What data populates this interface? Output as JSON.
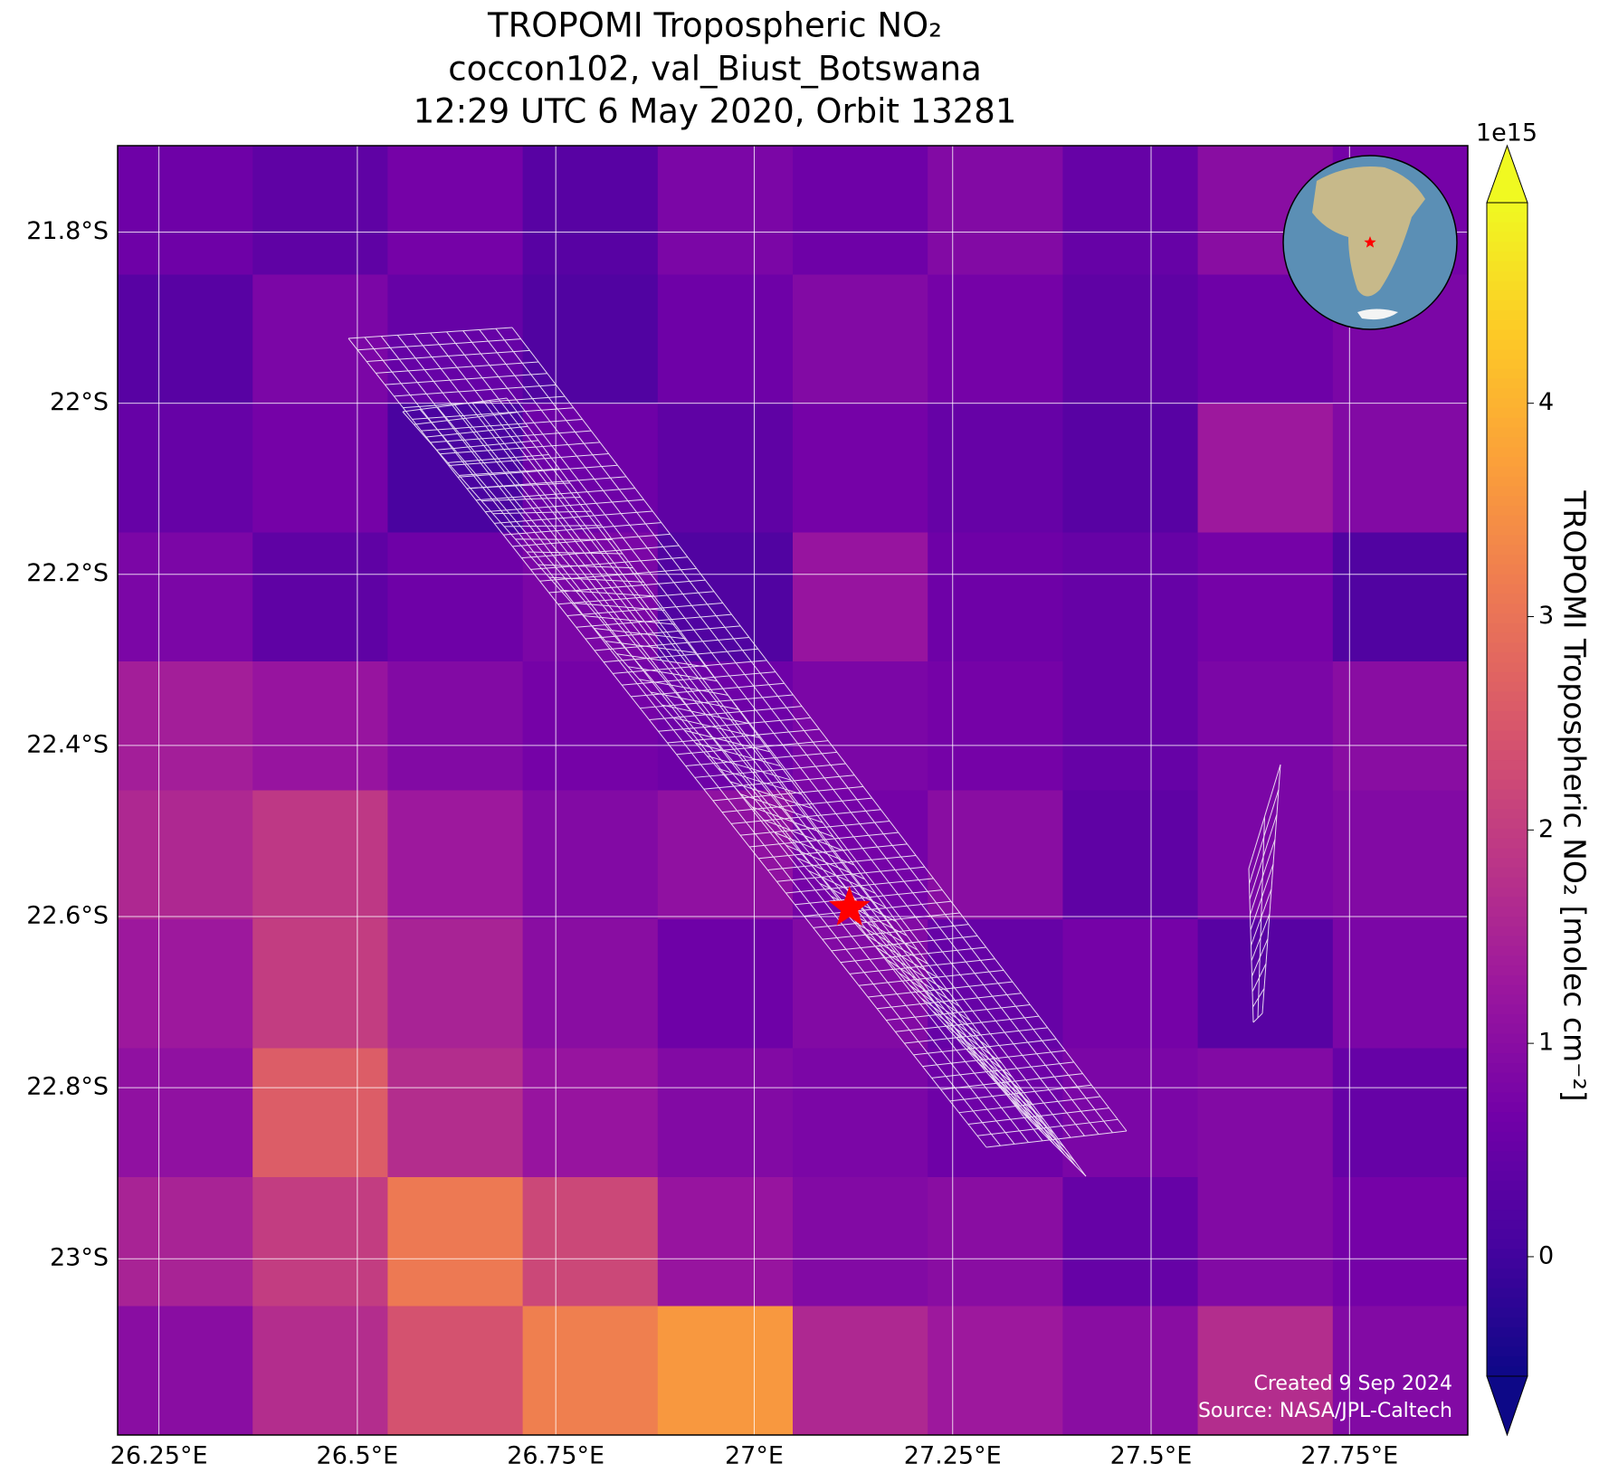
{
  "chart_data": {
    "type": "heatmap",
    "title_lines": [
      "TROPOMI Tropospheric NO₂",
      "coccon102, val_Biust_Botswana",
      "12:29 UTC 6 May 2020, Orbit 13281"
    ],
    "xlim": [
      26.198,
      27.899
    ],
    "ylim": [
      -23.206,
      -21.699
    ],
    "xticks": [
      {
        "value": 26.25,
        "label": "26.25°E"
      },
      {
        "value": 26.5,
        "label": "26.5°E"
      },
      {
        "value": 26.75,
        "label": "26.75°E"
      },
      {
        "value": 27,
        "label": "27°E"
      },
      {
        "value": 27.25,
        "label": "27.25°E"
      },
      {
        "value": 27.5,
        "label": "27.5°E"
      },
      {
        "value": 27.75,
        "label": "27.75°E"
      }
    ],
    "yticks": [
      {
        "value": -21.8,
        "label": "21.8°S"
      },
      {
        "value": -22,
        "label": "22°S"
      },
      {
        "value": -22.2,
        "label": "22.2°S"
      },
      {
        "value": -22.4,
        "label": "22.4°S"
      },
      {
        "value": -22.6,
        "label": "22.6°S"
      },
      {
        "value": -22.8,
        "label": "22.8°S"
      },
      {
        "value": -23,
        "label": "23°S"
      }
    ],
    "grid": true,
    "colormap": "plasma",
    "clim": [
      -0.56,
      4.94
    ],
    "cticks": [
      0,
      1,
      2,
      3,
      4
    ],
    "colorbar_exponent": "1e15",
    "colorbar_label": "TROPOMI Tropospheric NO₂ [molec cm⁻²]",
    "grid_values": [
      [
        0.6,
        0.4,
        0.7,
        0.3,
        0.8,
        0.6,
        0.9,
        0.5,
        1.0,
        0.7
      ],
      [
        0.3,
        0.8,
        0.5,
        0.2,
        0.6,
        0.9,
        0.7,
        0.4,
        0.6,
        0.8
      ],
      [
        0.5,
        0.7,
        0.1,
        0.6,
        0.4,
        0.7,
        0.5,
        0.3,
        1.3,
        0.9
      ],
      [
        0.8,
        0.4,
        0.6,
        0.8,
        0.2,
        1.2,
        0.6,
        0.5,
        0.7,
        0.2
      ],
      [
        1.4,
        1.2,
        0.9,
        0.7,
        0.6,
        0.8,
        0.7,
        0.5,
        0.8,
        1.0
      ],
      [
        1.6,
        1.9,
        1.3,
        0.9,
        1.1,
        0.7,
        1.0,
        0.4,
        0.8,
        0.9
      ],
      [
        1.3,
        2.0,
        1.5,
        1.0,
        0.6,
        0.9,
        0.5,
        0.7,
        0.3,
        0.8
      ],
      [
        1.1,
        2.6,
        1.7,
        1.2,
        0.9,
        0.8,
        0.6,
        0.8,
        0.9,
        0.5
      ],
      [
        1.5,
        2.0,
        3.1,
        2.2,
        1.2,
        0.9,
        1.0,
        0.5,
        0.9,
        0.7
      ],
      [
        1.0,
        1.7,
        2.4,
        3.2,
        3.6,
        1.6,
        1.3,
        1.0,
        1.7,
        0.9
      ]
    ],
    "site": {
      "lon": 27.12,
      "lat": -22.59,
      "color": "#ff0000"
    },
    "footer": [
      "Created 9 Sep 2024",
      "Source: NASA/JPL-Caltech"
    ]
  }
}
